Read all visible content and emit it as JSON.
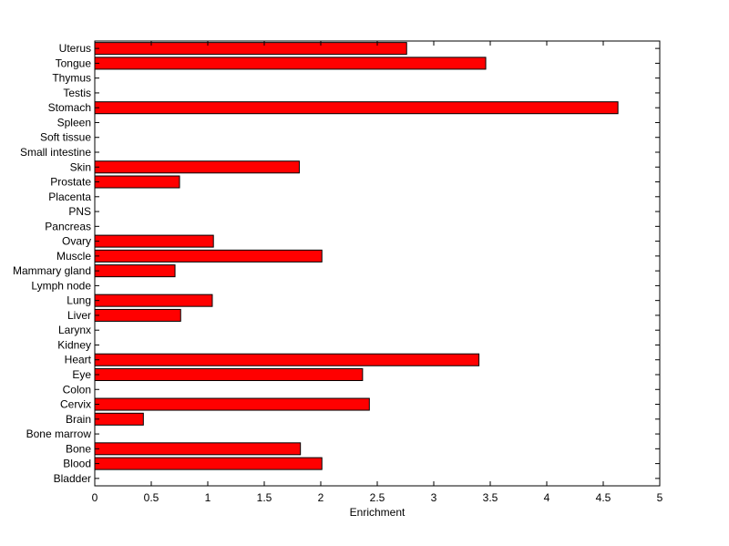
{
  "chart_data": {
    "type": "bar",
    "orientation": "horizontal",
    "title": "",
    "xlabel": "Enrichment",
    "ylabel": "",
    "xlim": [
      0,
      5
    ],
    "xticks": [
      0,
      0.5,
      1,
      1.5,
      2,
      2.5,
      3,
      3.5,
      4,
      4.5,
      5
    ],
    "xtick_labels": [
      "0",
      "0.5",
      "1",
      "1.5",
      "2",
      "2.5",
      "3",
      "3.5",
      "4",
      "4.5",
      "5"
    ],
    "grid": false,
    "bar_color": "#ff0000",
    "bar_edge_color": "#000000",
    "categories": [
      "Bladder",
      "Blood",
      "Bone",
      "Bone marrow",
      "Brain",
      "Cervix",
      "Colon",
      "Eye",
      "Heart",
      "Kidney",
      "Larynx",
      "Liver",
      "Lung",
      "Lymph node",
      "Mammary gland",
      "Muscle",
      "Ovary",
      "Pancreas",
      "PNS",
      "Placenta",
      "Prostate",
      "Skin",
      "Small intestine",
      "Soft tissue",
      "Spleen",
      "Stomach",
      "Testis",
      "Thymus",
      "Tongue",
      "Uterus"
    ],
    "values": [
      0,
      2.01,
      1.82,
      0,
      0.43,
      2.43,
      0,
      2.37,
      3.4,
      0,
      0,
      0.76,
      1.04,
      0,
      0.71,
      2.01,
      1.05,
      0,
      0,
      0,
      0.75,
      1.81,
      0,
      0,
      0,
      4.63,
      0,
      0,
      3.46,
      2.76
    ]
  }
}
